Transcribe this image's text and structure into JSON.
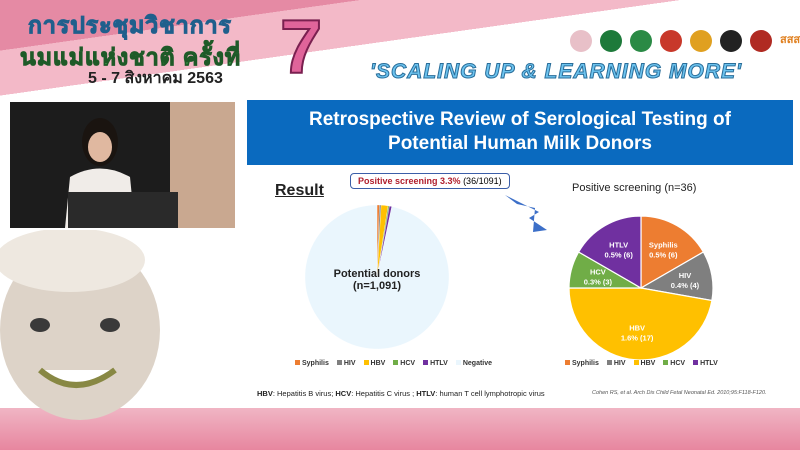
{
  "banner": {
    "title_line1": "การประชุมวิชาการ",
    "title_line2": "นมแม่แห่งชาติ ครั้งที่",
    "edition": "7",
    "dates": "5 - 7 สิงหาคม 2563",
    "slogan": "'SCALING UP & LEARNING MORE'",
    "logos_text": "สสส",
    "colors": {
      "pink": "#e58aa4",
      "blue": "#5ab4e6",
      "green": "#3cae4c"
    }
  },
  "slide": {
    "title_line1": "Retrospective Review of Serological Testing of",
    "title_line2": "Potential Human Milk Donors",
    "result_heading": "Result",
    "callout_bold": "Positive screening 3.3%",
    "callout_rest": "(36/1091)",
    "footnote": {
      "hbv_abbr": "HBV",
      "hbv": ": Hepatitis B virus; ",
      "hcv_abbr": "HCV",
      "hcv": ": Hepatitis C virus ; ",
      "htlv_abbr": "HTLV",
      "htlv": ": human T cell lymphotropic virus"
    },
    "citation": "Cohen RS, et al. Arch Dis Child Fetal Neonatal Ed. 2010;95:F118-F120."
  },
  "chart_data": [
    {
      "type": "pie",
      "categories": [
        "Syphilis",
        "HIV",
        "HBV",
        "HCV",
        "HTLV",
        "Negative"
      ],
      "values": [
        6,
        4,
        17,
        3,
        6,
        1055
      ],
      "colors": [
        "#ed7d31",
        "#7f7f7f",
        "#ffc000",
        "#70ad47",
        "#7030a0",
        "#eaf6fd"
      ],
      "center_label_1": "Potential donors",
      "center_label_2": "(n=1,091)",
      "legend": [
        "Syphilis",
        "HIV",
        "HBV",
        "HCV",
        "HTLV",
        "Negative"
      ],
      "legend_position": "bottom"
    },
    {
      "type": "pie",
      "title": "Positive screening (n=36)",
      "categories": [
        "Syphilis",
        "HIV",
        "HBV",
        "HCV",
        "HTLV"
      ],
      "values": [
        6,
        4,
        17,
        3,
        6
      ],
      "labels": [
        [
          "Syphilis",
          "0.5% (6)"
        ],
        [
          "HIV",
          "0.4% (4)"
        ],
        [
          "HBV",
          "1.6% (17)"
        ],
        [
          "HCV",
          "0.3% (3)"
        ],
        [
          "HTLV",
          "0.5% (6)"
        ]
      ],
      "colors": [
        "#ed7d31",
        "#7f7f7f",
        "#ffc000",
        "#70ad47",
        "#7030a0"
      ],
      "legend": [
        "Syphilis",
        "HIV",
        "HBV",
        "HCV",
        "HTLV"
      ],
      "legend_position": "bottom"
    }
  ]
}
